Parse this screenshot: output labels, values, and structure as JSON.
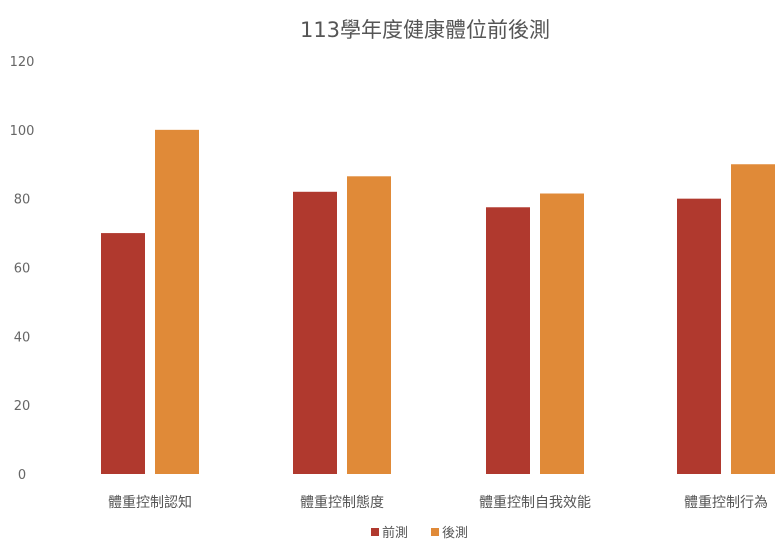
{
  "chart_data": {
    "type": "bar",
    "title": "113學年度健康體位前後測",
    "categories": [
      "體重控制認知",
      "體重控制態度",
      "體重控制自我效能",
      "體重控制行為"
    ],
    "series": [
      {
        "name": "前測",
        "values": [
          70,
          82,
          77.5,
          80
        ],
        "color": "#b0392e"
      },
      {
        "name": "後測",
        "values": [
          100,
          86.5,
          81.5,
          90
        ],
        "color": "#e08a38"
      }
    ],
    "ylim": [
      0,
      120
    ],
    "yticks": [
      0,
      20,
      40,
      60,
      80,
      100,
      120
    ],
    "xlabel": "",
    "ylabel": "",
    "grid": false,
    "legend_position": "bottom"
  }
}
